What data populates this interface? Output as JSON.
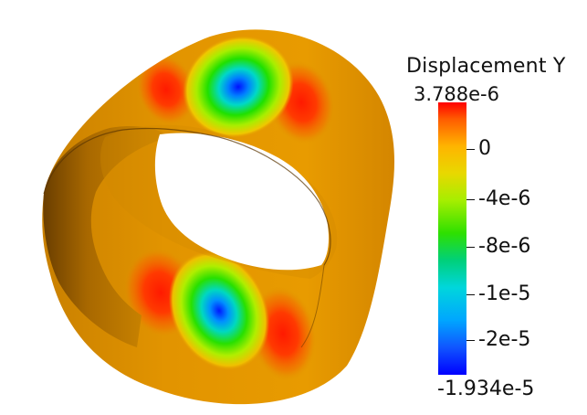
{
  "scalar_bar": {
    "title": "Displacement Y",
    "max_label": "3.788e-6",
    "min_label": "-1.934e-5",
    "ticks": [
      "0",
      "-4e-6",
      "-8e-6",
      "-1e-5",
      "-2e-5"
    ]
  },
  "colors": {
    "background": "#ffffff",
    "surface_base": "#e09400",
    "surface_edge": "#7a4a00",
    "peak_positive": "#ff1e00",
    "peak_negative": "#0018ff"
  }
}
